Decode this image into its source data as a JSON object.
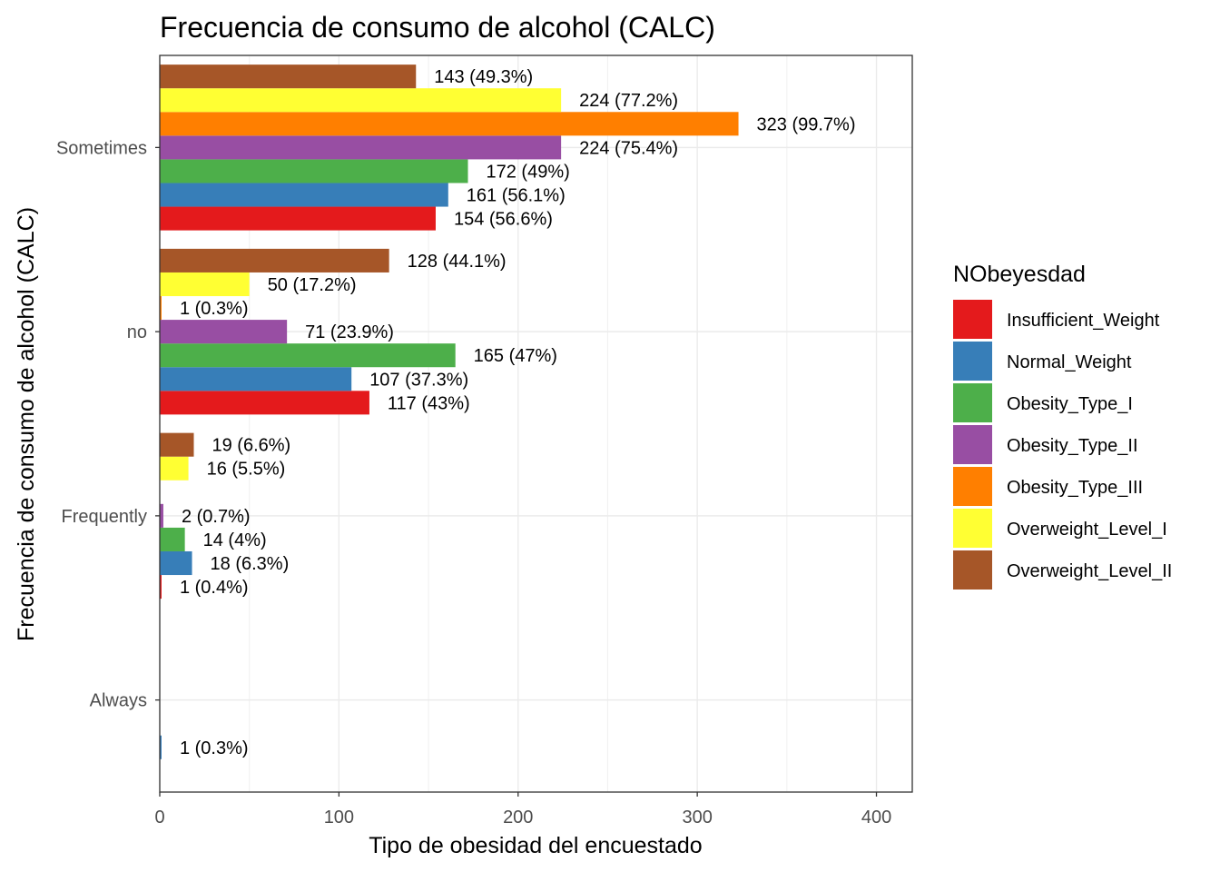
{
  "chart_data": {
    "type": "bar",
    "orientation": "horizontal",
    "title": "Frecuencia de consumo de alcohol (CALC)",
    "xlabel": "Tipo de obesidad del encuestado",
    "ylabel": "Frecuencia de consumo de alcohol (CALC)",
    "xlim": [
      0,
      420
    ],
    "xticks": [
      0,
      100,
      200,
      300,
      400
    ],
    "categories": [
      "Always",
      "Frequently",
      "no",
      "Sometimes"
    ],
    "grid": true,
    "legend_title": "NObeyesdad",
    "legend_position": "right",
    "series": [
      {
        "name": "Insufficient_Weight",
        "color": "#E41A1C",
        "values": [
          null,
          1,
          117,
          154
        ],
        "labels": [
          "",
          "1 (0.4%)",
          "117 (43%)",
          "154 (56.6%)"
        ]
      },
      {
        "name": "Normal_Weight",
        "color": "#377EB8",
        "values": [
          1,
          18,
          107,
          161
        ],
        "labels": [
          "1 (0.3%)",
          "18 (6.3%)",
          "107 (37.3%)",
          "161 (56.1%)"
        ]
      },
      {
        "name": "Obesity_Type_I",
        "color": "#4DAF4A",
        "values": [
          null,
          14,
          165,
          172
        ],
        "labels": [
          "",
          "14 (4%)",
          "165 (47%)",
          "172 (49%)"
        ]
      },
      {
        "name": "Obesity_Type_II",
        "color": "#984EA3",
        "values": [
          null,
          2,
          71,
          224
        ],
        "labels": [
          "",
          "2 (0.7%)",
          "71 (23.9%)",
          "224 (75.4%)"
        ]
      },
      {
        "name": "Obesity_Type_III",
        "color": "#FF7F00",
        "values": [
          null,
          null,
          1,
          323
        ],
        "labels": [
          "",
          "",
          "1 (0.3%)",
          "323 (99.7%)"
        ]
      },
      {
        "name": "Overweight_Level_I",
        "color": "#FFFF33",
        "values": [
          null,
          16,
          50,
          224
        ],
        "labels": [
          "",
          "16 (5.5%)",
          "50 (17.2%)",
          "224 (77.2%)"
        ]
      },
      {
        "name": "Overweight_Level_II",
        "color": "#A65628",
        "values": [
          null,
          19,
          128,
          143
        ],
        "labels": [
          "",
          "19 (6.6%)",
          "128 (44.1%)",
          "143 (49.3%)"
        ]
      }
    ]
  }
}
